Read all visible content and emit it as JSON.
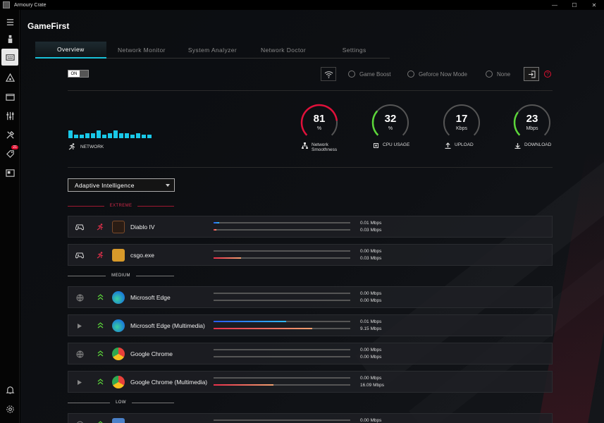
{
  "window": {
    "title": "Armoury Crate",
    "controls": [
      "—",
      "☐",
      "✕"
    ]
  },
  "app": {
    "name": "GameFirst"
  },
  "tabs": [
    {
      "label": "Overview",
      "active": true
    },
    {
      "label": "Network Monitor",
      "active": false
    },
    {
      "label": "System Analyzer",
      "active": false
    },
    {
      "label": "Network Doctor",
      "active": false
    },
    {
      "label": "Settings",
      "active": false
    }
  ],
  "toggle": {
    "on_label": "ON",
    "state": "on"
  },
  "modes": [
    {
      "label": "Game Boost"
    },
    {
      "label": "Geforce Now Mode"
    },
    {
      "label": "None"
    }
  ],
  "help_label": "?",
  "network": {
    "label": "NETWORK",
    "bar_levels": [
      1.0,
      0.45,
      0.45,
      0.65,
      0.65,
      1.0,
      0.45,
      0.65,
      1.0,
      0.65,
      0.65,
      0.45,
      0.65,
      0.45,
      0.45
    ]
  },
  "gauges": [
    {
      "value": "81",
      "unit": "%",
      "label": "Network Smoothness",
      "fraction": 0.81,
      "color": "#e0103a"
    },
    {
      "value": "32",
      "unit": "%",
      "label": "CPU USAGE",
      "fraction": 0.32,
      "color": "#5cd63a"
    },
    {
      "value": "17",
      "unit": "Kbps",
      "label": "UPLOAD",
      "fraction": 0.0,
      "color": "#5cd63a"
    },
    {
      "value": "23",
      "unit": "Mbps",
      "label": "DOWNLOAD",
      "fraction": 0.3,
      "color": "#5cd63a"
    }
  ],
  "priority_select": {
    "value": "Adaptive Intelligence"
  },
  "sections": {
    "extreme": "EXTREME",
    "medium": "MEDIUM",
    "low": "LOW"
  },
  "apps": [
    {
      "name": "Diablo IV",
      "up": "0.01 Mbps",
      "down": "0.03 Mbps",
      "up_fraction": 0.04,
      "down_fraction": 0.02
    },
    {
      "name": "csgo.exe",
      "up": "0.00 Mbps",
      "down": "0.03 Mbps",
      "up_fraction": 0.0,
      "down_fraction": 0.2
    },
    {
      "name": "Microsoft Edge",
      "up": "0.00 Mbps",
      "down": "0.00 Mbps",
      "up_fraction": 0.0,
      "down_fraction": 0.0
    },
    {
      "name": "Microsoft Edge (Multimedia)",
      "up": "0.01 Mbps",
      "down": "9.15 Mbps",
      "up_fraction": 0.53,
      "down_fraction": 0.72
    },
    {
      "name": "Google Chrome",
      "up": "0.00 Mbps",
      "down": "0.00 Mbps",
      "up_fraction": 0.0,
      "down_fraction": 0.0
    },
    {
      "name": "Google Chrome (Multimedia)",
      "up": "0.00 Mbps",
      "down": "16.09 Mbps",
      "up_fraction": 0.0,
      "down_fraction": 0.44
    },
    {
      "name": "",
      "up": "0.00 Mbps",
      "down": "",
      "up_fraction": 0.0,
      "down_fraction": 0.0
    }
  ],
  "colors": {
    "accent": "#18c0d8",
    "extreme": "#d02848",
    "upload": "#2a7cf0",
    "download": "#e8304a"
  }
}
